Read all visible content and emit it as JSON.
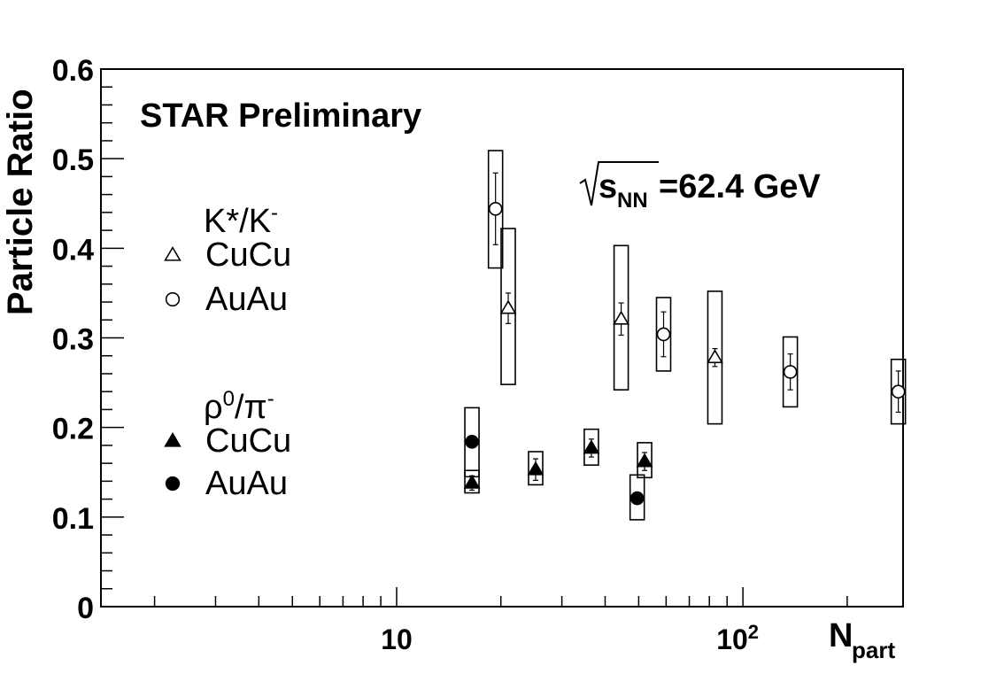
{
  "chart_data": {
    "type": "scatter",
    "title": "STAR Preliminary",
    "annotation": {
      "sqrt_symbol": "√",
      "s": "s",
      "subscript": "NN",
      "rest": "=62.4 GeV"
    },
    "xlabel": {
      "main": "N",
      "sub": "part"
    },
    "ylabel": "Particle Ratio",
    "xscale": "log",
    "xlim": [
      1.4,
      290
    ],
    "ylim": [
      0,
      0.6
    ],
    "x_ticks": [
      {
        "value": 10,
        "base": "10",
        "exp": ""
      },
      {
        "value": 100,
        "base": "10",
        "exp": "2"
      }
    ],
    "y_ticks": [
      {
        "value": 0,
        "label": "0"
      },
      {
        "value": 0.1,
        "label": "0.1"
      },
      {
        "value": 0.2,
        "label": "0.2"
      },
      {
        "value": 0.3,
        "label": "0.3"
      },
      {
        "value": 0.4,
        "label": "0.4"
      },
      {
        "value": 0.5,
        "label": "0.5"
      },
      {
        "value": 0.6,
        "label": "0.6"
      }
    ],
    "legend_groups": [
      {
        "base": "K*/K",
        "sup1": "",
        "mid": "",
        "sup2": "-"
      },
      {
        "base": "ρ",
        "sup1": "0",
        "mid": "/π",
        "sup2": "-"
      }
    ],
    "series": [
      {
        "name": "CuCu",
        "group": 0,
        "marker": "triangle",
        "filled": false,
        "points": [
          {
            "x": 21,
            "y": 0.333,
            "err": 0.017,
            "sys_lo": 0.248,
            "sys_hi": 0.422
          },
          {
            "x": 44.5,
            "y": 0.321,
            "err": 0.018,
            "sys_lo": 0.242,
            "sys_hi": 0.403
          },
          {
            "x": 83,
            "y": 0.278,
            "err": 0.01,
            "sys_lo": 0.204,
            "sys_hi": 0.352
          }
        ]
      },
      {
        "name": "AuAu",
        "group": 0,
        "marker": "circle",
        "filled": false,
        "points": [
          {
            "x": 19.3,
            "y": 0.444,
            "err": 0.04,
            "sys_lo": 0.378,
            "sys_hi": 0.509
          },
          {
            "x": 59,
            "y": 0.304,
            "err": 0.025,
            "sys_lo": 0.263,
            "sys_hi": 0.345
          },
          {
            "x": 137,
            "y": 0.262,
            "err": 0.02,
            "sys_lo": 0.223,
            "sys_hi": 0.301
          },
          {
            "x": 281,
            "y": 0.24,
            "err": 0.023,
            "sys_lo": 0.204,
            "sys_hi": 0.276
          }
        ]
      },
      {
        "name": "CuCu",
        "group": 1,
        "marker": "triangle",
        "filled": true,
        "points": [
          {
            "x": 16.5,
            "y": 0.138,
            "err": 0.008,
            "sys_lo": 0.127,
            "sys_hi": 0.152
          },
          {
            "x": 25.2,
            "y": 0.153,
            "err": 0.012,
            "sys_lo": 0.136,
            "sys_hi": 0.173
          },
          {
            "x": 36.5,
            "y": 0.177,
            "err": 0.01,
            "sys_lo": 0.158,
            "sys_hi": 0.198
          },
          {
            "x": 52,
            "y": 0.162,
            "err": 0.01,
            "sys_lo": 0.144,
            "sys_hi": 0.183
          }
        ]
      },
      {
        "name": "AuAu",
        "group": 1,
        "marker": "circle",
        "filled": true,
        "points": [
          {
            "x": 16.5,
            "y": 0.184,
            "err": 0,
            "sys_lo": 0.145,
            "sys_hi": 0.222
          },
          {
            "x": 49.5,
            "y": 0.121,
            "err": 0,
            "sys_lo": 0.097,
            "sys_hi": 0.147
          }
        ]
      }
    ]
  }
}
